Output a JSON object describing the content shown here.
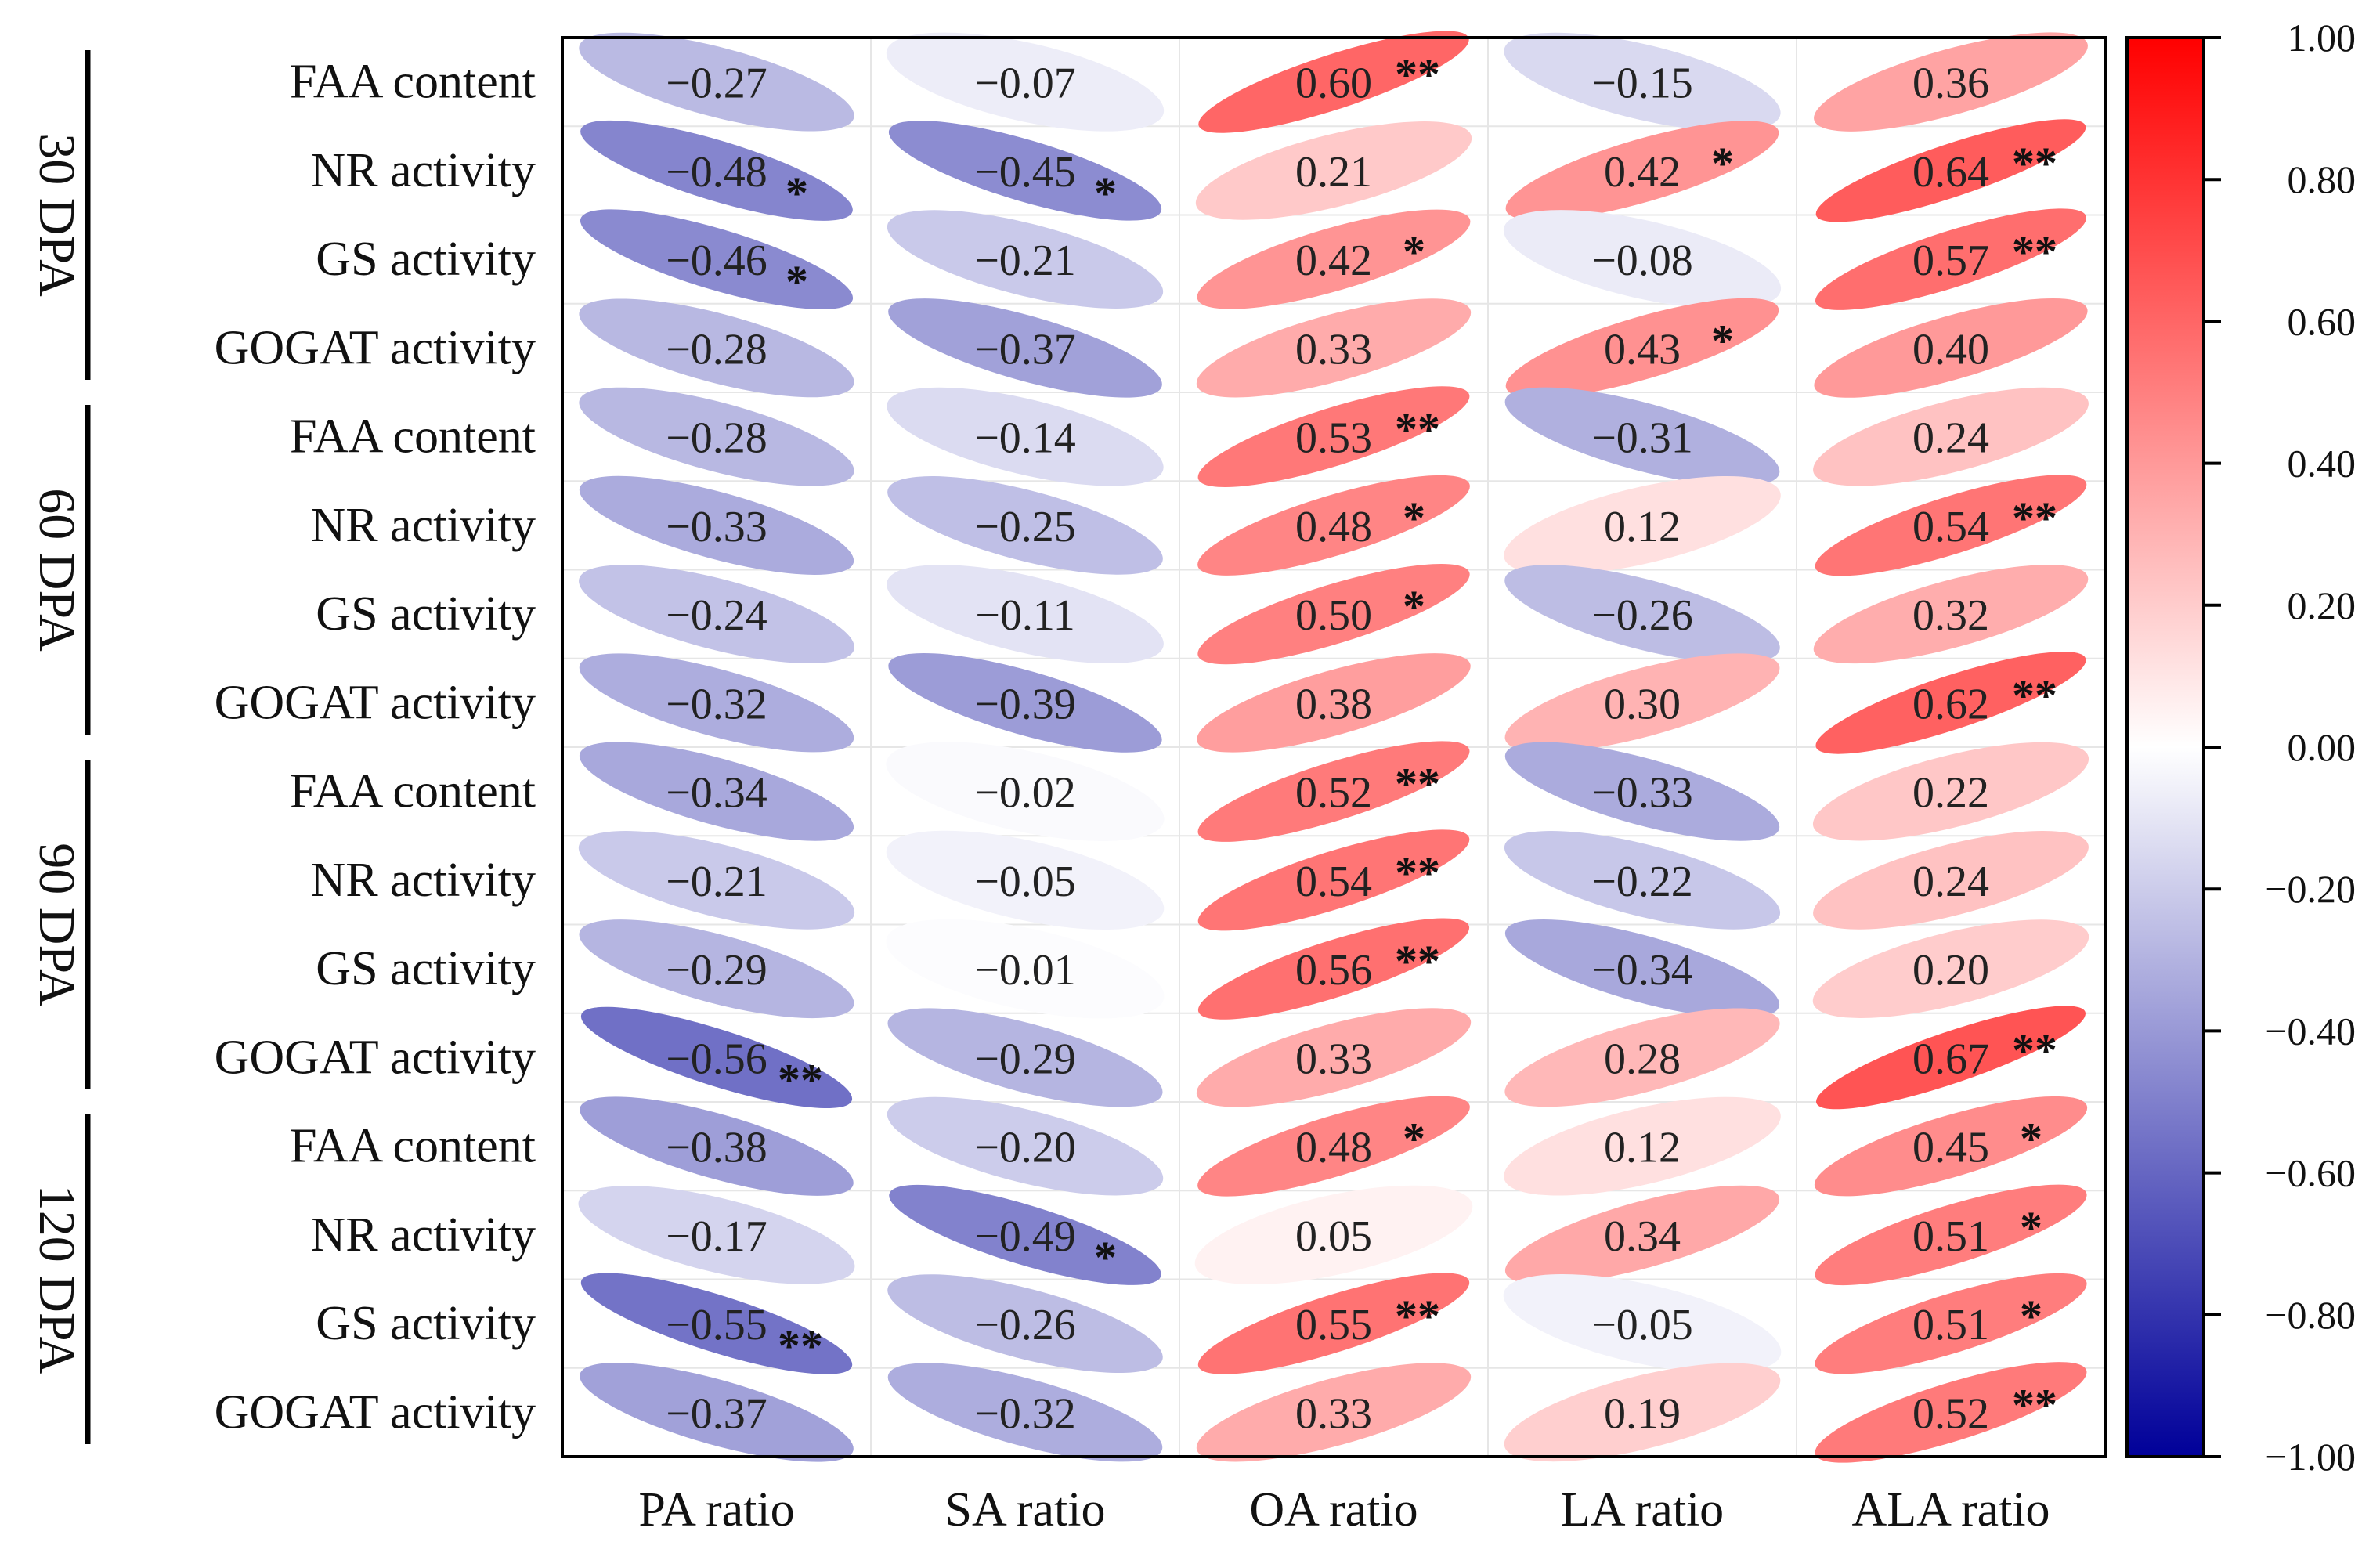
{
  "chart_data": {
    "type": "heatmap",
    "style": "ellipse correlation matrix",
    "columns": [
      "PA ratio",
      "SA ratio",
      "OA ratio",
      "LA ratio",
      "ALA ratio"
    ],
    "groups": [
      {
        "label": "30 DPA",
        "rows": [
          {
            "label": "FAA content",
            "values": [
              -0.27,
              -0.07,
              0.6,
              -0.15,
              0.36
            ],
            "text": [
              "−0.27",
              "−0.07",
              "0.60",
              "−0.15",
              "0.36"
            ],
            "sig": [
              "",
              "",
              "**",
              "",
              ""
            ]
          },
          {
            "label": "NR activity",
            "values": [
              -0.48,
              -0.45,
              0.21,
              0.42,
              0.64
            ],
            "text": [
              "−0.48",
              "−0.45",
              "0.21",
              "0.42",
              "0.64"
            ],
            "sig": [
              "*",
              "*",
              "",
              "*",
              "**"
            ]
          },
          {
            "label": "GS activity",
            "values": [
              -0.46,
              -0.21,
              0.42,
              -0.08,
              0.57
            ],
            "text": [
              "−0.46",
              "−0.21",
              "0.42",
              "−0.08",
              "0.57"
            ],
            "sig": [
              "*",
              "",
              "*",
              "",
              "**"
            ]
          },
          {
            "label": "GOGAT activity",
            "values": [
              -0.28,
              -0.37,
              0.33,
              0.43,
              0.4
            ],
            "text": [
              "−0.28",
              "−0.37",
              "0.33",
              "0.43",
              "0.40"
            ],
            "sig": [
              "",
              "",
              "",
              "*",
              ""
            ]
          }
        ]
      },
      {
        "label": "60 DPA",
        "rows": [
          {
            "label": "FAA content",
            "values": [
              -0.28,
              -0.14,
              0.53,
              -0.31,
              0.24
            ],
            "text": [
              "−0.28",
              "−0.14",
              "0.53",
              "−0.31",
              "0.24"
            ],
            "sig": [
              "",
              "",
              "**",
              "",
              ""
            ]
          },
          {
            "label": "NR activity",
            "values": [
              -0.33,
              -0.25,
              0.48,
              0.12,
              0.54
            ],
            "text": [
              "−0.33",
              "−0.25",
              "0.48",
              "0.12",
              "0.54"
            ],
            "sig": [
              "",
              "",
              "*",
              "",
              "**"
            ]
          },
          {
            "label": "GS activity",
            "values": [
              -0.24,
              -0.11,
              0.5,
              -0.26,
              0.32
            ],
            "text": [
              "−0.24",
              "−0.11",
              "0.50",
              "−0.26",
              "0.32"
            ],
            "sig": [
              "",
              "",
              "*",
              "",
              ""
            ]
          },
          {
            "label": "GOGAT activity",
            "values": [
              -0.32,
              -0.39,
              0.38,
              0.3,
              0.62
            ],
            "text": [
              "−0.32",
              "−0.39",
              "0.38",
              "0.30",
              "0.62"
            ],
            "sig": [
              "",
              "",
              "",
              "",
              "**"
            ]
          }
        ]
      },
      {
        "label": "90 DPA",
        "rows": [
          {
            "label": "FAA content",
            "values": [
              -0.34,
              -0.02,
              0.52,
              -0.33,
              0.22
            ],
            "text": [
              "−0.34",
              "−0.02",
              "0.52",
              "−0.33",
              "0.22"
            ],
            "sig": [
              "",
              "",
              "**",
              "",
              ""
            ]
          },
          {
            "label": "NR activity",
            "values": [
              -0.21,
              -0.05,
              0.54,
              -0.22,
              0.24
            ],
            "text": [
              "−0.21",
              "−0.05",
              "0.54",
              "−0.22",
              "0.24"
            ],
            "sig": [
              "",
              "",
              "**",
              "",
              ""
            ]
          },
          {
            "label": "GS activity",
            "values": [
              -0.29,
              -0.01,
              0.56,
              -0.34,
              0.2
            ],
            "text": [
              "−0.29",
              "−0.01",
              "0.56",
              "−0.34",
              "0.20"
            ],
            "sig": [
              "",
              "",
              "**",
              "",
              ""
            ]
          },
          {
            "label": "GOGAT activity",
            "values": [
              -0.56,
              -0.29,
              0.33,
              0.28,
              0.67
            ],
            "text": [
              "−0.56",
              "−0.29",
              "0.33",
              "0.28",
              "0.67"
            ],
            "sig": [
              "**",
              "",
              "",
              "",
              "**"
            ]
          }
        ]
      },
      {
        "label": "120 DPA",
        "rows": [
          {
            "label": "FAA content",
            "values": [
              -0.38,
              -0.2,
              0.48,
              0.12,
              0.45
            ],
            "text": [
              "−0.38",
              "−0.20",
              "0.48",
              "0.12",
              "0.45"
            ],
            "sig": [
              "",
              "",
              "*",
              "",
              "*"
            ]
          },
          {
            "label": "NR activity",
            "values": [
              -0.17,
              -0.49,
              0.05,
              0.34,
              0.51
            ],
            "text": [
              "−0.17",
              "−0.49",
              "0.05",
              "0.34",
              "0.51"
            ],
            "sig": [
              "",
              "*",
              "",
              "",
              "*"
            ]
          },
          {
            "label": "GS activity",
            "values": [
              -0.55,
              -0.26,
              0.55,
              -0.05,
              0.51
            ],
            "text": [
              "−0.55",
              "−0.26",
              "0.55",
              "−0.05",
              "0.51"
            ],
            "sig": [
              "**",
              "",
              "**",
              "",
              "*"
            ]
          },
          {
            "label": "GOGAT activity",
            "values": [
              -0.37,
              -0.32,
              0.33,
              0.19,
              0.52
            ],
            "text": [
              "−0.37",
              "−0.32",
              "0.33",
              "0.19",
              "0.52"
            ],
            "sig": [
              "",
              "",
              "",
              "",
              "**"
            ]
          }
        ]
      }
    ],
    "colorbar": {
      "range": [
        -1.0,
        1.0
      ],
      "ticks": [
        "1.00",
        "0.80",
        "0.60",
        "0.40",
        "0.20",
        "0.00",
        "−0.20",
        "−0.40",
        "−0.60",
        "−0.80",
        "−1.00"
      ],
      "colors": {
        "negative": "#000099",
        "zero": "#ffffff",
        "positive": "#ff0000"
      }
    }
  }
}
